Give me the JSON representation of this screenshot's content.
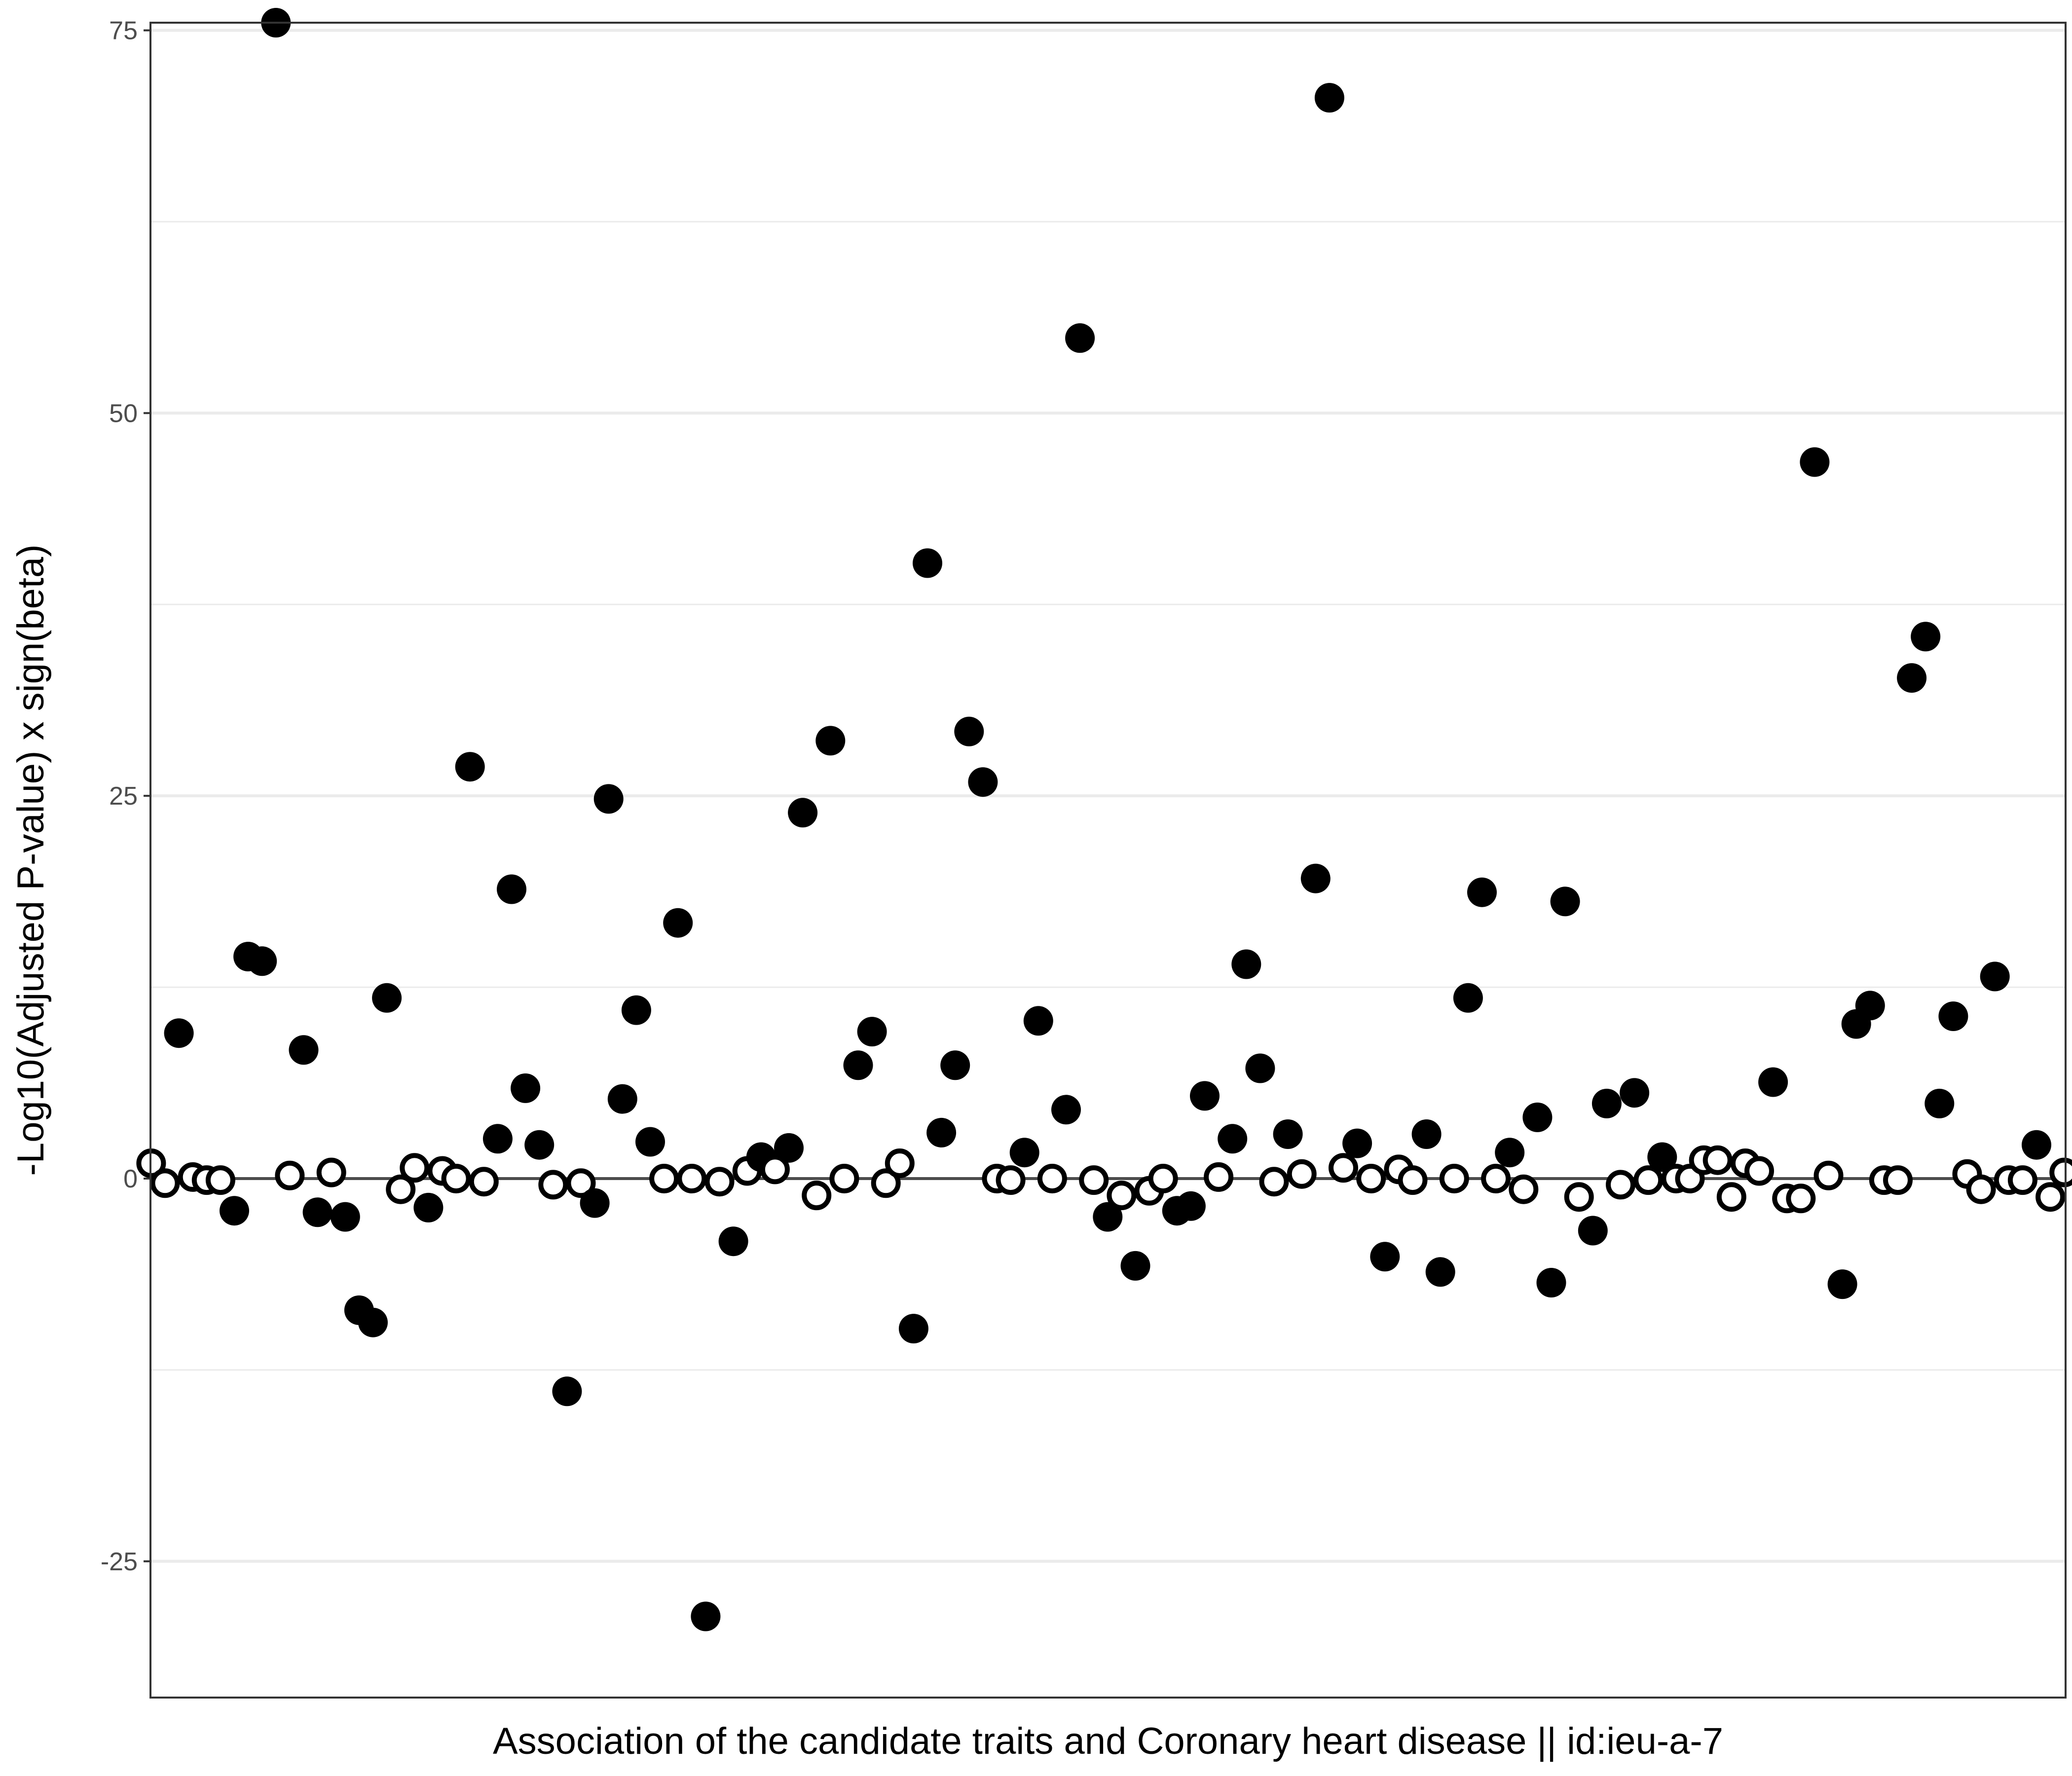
{
  "chart_data": {
    "type": "scatter",
    "title": "",
    "xlabel": "Association of the candidate traits and Coronary heart disease || id:ieu-a-7",
    "ylabel": "-Log10(Adjusted P-value) x sign(beta)",
    "ylim": [
      -33.9,
      75.5
    ],
    "yticks": [
      -25,
      0,
      25,
      50,
      75
    ],
    "ytick_labels": [
      "-25",
      "0",
      "25",
      "50",
      "75"
    ],
    "grid": true,
    "reference_line_y": 0,
    "legend": "none",
    "marker_styles": {
      "significant": "filled black circle",
      "not_significant": "hollow circle with black outline"
    },
    "colors": {
      "filled": "#000000",
      "hollow_fill": "#ffffff",
      "outline": "#000000",
      "grid": "#ebebeb",
      "zero_line": "#4d4d4d",
      "frame": "#333333"
    },
    "points": [
      {
        "x": 1,
        "y": 1.0,
        "filled": false
      },
      {
        "x": 2,
        "y": -0.3,
        "filled": false
      },
      {
        "x": 3,
        "y": 9.5,
        "filled": true
      },
      {
        "x": 4,
        "y": 0.1,
        "filled": false
      },
      {
        "x": 5,
        "y": -0.1,
        "filled": false
      },
      {
        "x": 6,
        "y": -0.1,
        "filled": false
      },
      {
        "x": 7,
        "y": -2.1,
        "filled": true
      },
      {
        "x": 8,
        "y": 14.5,
        "filled": true
      },
      {
        "x": 9,
        "y": 14.2,
        "filled": true
      },
      {
        "x": 10,
        "y": 75.5,
        "filled": true
      },
      {
        "x": 11,
        "y": 0.2,
        "filled": false
      },
      {
        "x": 12,
        "y": 8.4,
        "filled": true
      },
      {
        "x": 13,
        "y": -2.2,
        "filled": true
      },
      {
        "x": 14,
        "y": 0.4,
        "filled": false
      },
      {
        "x": 15,
        "y": -2.5,
        "filled": true
      },
      {
        "x": 16,
        "y": -8.6,
        "filled": true
      },
      {
        "x": 17,
        "y": -9.4,
        "filled": true
      },
      {
        "x": 18,
        "y": 11.8,
        "filled": true
      },
      {
        "x": 19,
        "y": -0.7,
        "filled": false
      },
      {
        "x": 20,
        "y": 0.7,
        "filled": false
      },
      {
        "x": 21,
        "y": -1.9,
        "filled": true
      },
      {
        "x": 22,
        "y": 0.5,
        "filled": false
      },
      {
        "x": 23,
        "y": 0.0,
        "filled": false
      },
      {
        "x": 24,
        "y": 26.9,
        "filled": true
      },
      {
        "x": 25,
        "y": -0.2,
        "filled": false
      },
      {
        "x": 26,
        "y": 2.6,
        "filled": true
      },
      {
        "x": 27,
        "y": 18.9,
        "filled": true
      },
      {
        "x": 28,
        "y": 5.9,
        "filled": true
      },
      {
        "x": 29,
        "y": 2.2,
        "filled": true
      },
      {
        "x": 30,
        "y": -0.4,
        "filled": false
      },
      {
        "x": 31,
        "y": -13.9,
        "filled": true
      },
      {
        "x": 32,
        "y": -0.3,
        "filled": false
      },
      {
        "x": 33,
        "y": -1.6,
        "filled": true
      },
      {
        "x": 34,
        "y": 24.8,
        "filled": true
      },
      {
        "x": 35,
        "y": 5.2,
        "filled": true
      },
      {
        "x": 36,
        "y": 11.0,
        "filled": true
      },
      {
        "x": 37,
        "y": 2.4,
        "filled": true
      },
      {
        "x": 38,
        "y": 0.0,
        "filled": false
      },
      {
        "x": 39,
        "y": 16.7,
        "filled": true
      },
      {
        "x": 40,
        "y": 0.0,
        "filled": false
      },
      {
        "x": 41,
        "y": -28.6,
        "filled": true
      },
      {
        "x": 42,
        "y": -0.2,
        "filled": false
      },
      {
        "x": 43,
        "y": -4.1,
        "filled": true
      },
      {
        "x": 44,
        "y": 0.5,
        "filled": false
      },
      {
        "x": 45,
        "y": 1.4,
        "filled": true
      },
      {
        "x": 46,
        "y": 0.6,
        "filled": false
      },
      {
        "x": 47,
        "y": 2.0,
        "filled": true
      },
      {
        "x": 48,
        "y": 23.9,
        "filled": true
      },
      {
        "x": 49,
        "y": -1.1,
        "filled": false
      },
      {
        "x": 50,
        "y": 28.6,
        "filled": true
      },
      {
        "x": 51,
        "y": 0.0,
        "filled": false
      },
      {
        "x": 52,
        "y": 7.4,
        "filled": true
      },
      {
        "x": 53,
        "y": 9.6,
        "filled": true
      },
      {
        "x": 54,
        "y": -0.3,
        "filled": false
      },
      {
        "x": 55,
        "y": 1.0,
        "filled": false
      },
      {
        "x": 56,
        "y": -9.8,
        "filled": true
      },
      {
        "x": 57,
        "y": 40.2,
        "filled": true
      },
      {
        "x": 58,
        "y": 3.0,
        "filled": true
      },
      {
        "x": 59,
        "y": 7.4,
        "filled": true
      },
      {
        "x": 60,
        "y": 29.2,
        "filled": true
      },
      {
        "x": 61,
        "y": 25.9,
        "filled": true
      },
      {
        "x": 62,
        "y": 0.0,
        "filled": false
      },
      {
        "x": 63,
        "y": -0.1,
        "filled": false
      },
      {
        "x": 64,
        "y": 1.7,
        "filled": true
      },
      {
        "x": 65,
        "y": 10.3,
        "filled": true
      },
      {
        "x": 66,
        "y": 0.0,
        "filled": false
      },
      {
        "x": 67,
        "y": 4.5,
        "filled": true
      },
      {
        "x": 68,
        "y": 54.9,
        "filled": true
      },
      {
        "x": 69,
        "y": -0.1,
        "filled": false
      },
      {
        "x": 70,
        "y": -2.5,
        "filled": true
      },
      {
        "x": 71,
        "y": -1.1,
        "filled": false
      },
      {
        "x": 72,
        "y": -5.7,
        "filled": true
      },
      {
        "x": 73,
        "y": -0.8,
        "filled": false
      },
      {
        "x": 74,
        "y": 0.0,
        "filled": false
      },
      {
        "x": 75,
        "y": -2.1,
        "filled": true
      },
      {
        "x": 76,
        "y": -1.8,
        "filled": true
      },
      {
        "x": 77,
        "y": 5.4,
        "filled": true
      },
      {
        "x": 78,
        "y": 0.1,
        "filled": false
      },
      {
        "x": 79,
        "y": 2.6,
        "filled": true
      },
      {
        "x": 80,
        "y": 14.0,
        "filled": true
      },
      {
        "x": 81,
        "y": 7.2,
        "filled": true
      },
      {
        "x": 82,
        "y": -0.2,
        "filled": false
      },
      {
        "x": 83,
        "y": 2.9,
        "filled": true
      },
      {
        "x": 84,
        "y": 0.3,
        "filled": false
      },
      {
        "x": 85,
        "y": 19.6,
        "filled": true
      },
      {
        "x": 86,
        "y": 70.6,
        "filled": true
      },
      {
        "x": 87,
        "y": 0.7,
        "filled": false
      },
      {
        "x": 88,
        "y": 2.3,
        "filled": true
      },
      {
        "x": 89,
        "y": 0.0,
        "filled": false
      },
      {
        "x": 90,
        "y": -5.1,
        "filled": true
      },
      {
        "x": 91,
        "y": 0.6,
        "filled": false
      },
      {
        "x": 92,
        "y": -0.1,
        "filled": false
      },
      {
        "x": 93,
        "y": 2.9,
        "filled": true
      },
      {
        "x": 94,
        "y": -6.1,
        "filled": true
      },
      {
        "x": 95,
        "y": 0.0,
        "filled": false
      },
      {
        "x": 96,
        "y": 11.8,
        "filled": true
      },
      {
        "x": 97,
        "y": 18.7,
        "filled": true
      },
      {
        "x": 98,
        "y": 0.0,
        "filled": false
      },
      {
        "x": 99,
        "y": 1.7,
        "filled": true
      },
      {
        "x": 100,
        "y": -0.7,
        "filled": false
      },
      {
        "x": 101,
        "y": 4.0,
        "filled": true
      },
      {
        "x": 102,
        "y": -6.8,
        "filled": true
      },
      {
        "x": 103,
        "y": 18.1,
        "filled": true
      },
      {
        "x": 104,
        "y": -1.2,
        "filled": false
      },
      {
        "x": 105,
        "y": -3.4,
        "filled": true
      },
      {
        "x": 106,
        "y": 4.9,
        "filled": true
      },
      {
        "x": 107,
        "y": -0.4,
        "filled": false
      },
      {
        "x": 108,
        "y": 5.6,
        "filled": true
      },
      {
        "x": 109,
        "y": -0.1,
        "filled": false
      },
      {
        "x": 110,
        "y": 1.4,
        "filled": true
      },
      {
        "x": 111,
        "y": 0.0,
        "filled": false
      },
      {
        "x": 112,
        "y": 0.0,
        "filled": false
      },
      {
        "x": 113,
        "y": 1.2,
        "filled": false
      },
      {
        "x": 114,
        "y": 1.2,
        "filled": false
      },
      {
        "x": 115,
        "y": -1.2,
        "filled": false
      },
      {
        "x": 116,
        "y": 1.0,
        "filled": false
      },
      {
        "x": 117,
        "y": 0.5,
        "filled": false
      },
      {
        "x": 118,
        "y": 6.3,
        "filled": true
      },
      {
        "x": 119,
        "y": -1.3,
        "filled": false
      },
      {
        "x": 120,
        "y": -1.3,
        "filled": false
      },
      {
        "x": 121,
        "y": 46.8,
        "filled": true
      },
      {
        "x": 122,
        "y": 0.2,
        "filled": false
      },
      {
        "x": 123,
        "y": -6.9,
        "filled": true
      },
      {
        "x": 124,
        "y": 10.1,
        "filled": true
      },
      {
        "x": 125,
        "y": 11.3,
        "filled": true
      },
      {
        "x": 126,
        "y": -0.1,
        "filled": false
      },
      {
        "x": 127,
        "y": -0.1,
        "filled": false
      },
      {
        "x": 128,
        "y": 32.7,
        "filled": true
      },
      {
        "x": 129,
        "y": 35.4,
        "filled": true
      },
      {
        "x": 130,
        "y": 4.9,
        "filled": true
      },
      {
        "x": 131,
        "y": 10.6,
        "filled": true
      },
      {
        "x": 132,
        "y": 0.3,
        "filled": false
      },
      {
        "x": 133,
        "y": -0.7,
        "filled": false
      },
      {
        "x": 134,
        "y": 13.2,
        "filled": true
      },
      {
        "x": 135,
        "y": -0.1,
        "filled": false
      },
      {
        "x": 136,
        "y": -0.1,
        "filled": false
      },
      {
        "x": 137,
        "y": 2.2,
        "filled": true
      },
      {
        "x": 138,
        "y": -1.2,
        "filled": false
      },
      {
        "x": 139,
        "y": 0.4,
        "filled": false
      }
    ]
  }
}
